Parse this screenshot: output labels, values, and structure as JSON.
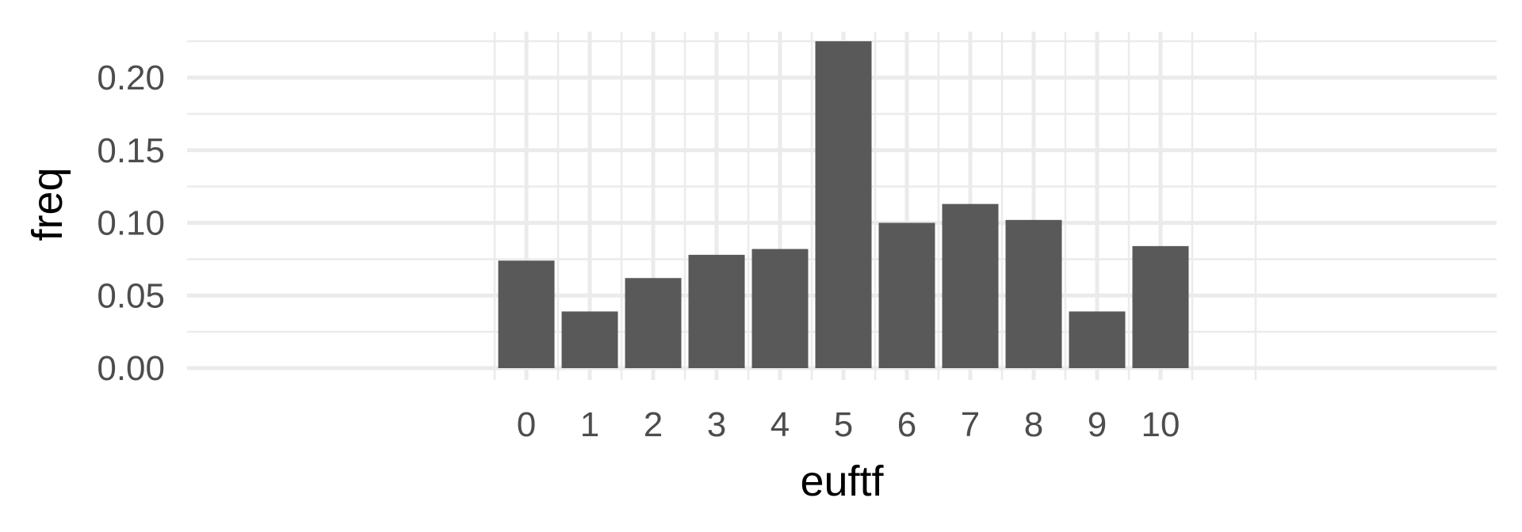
{
  "chart_data": {
    "type": "bar",
    "xlabel": "euftf",
    "ylabel": "freq",
    "categories": [
      "0",
      "1",
      "2",
      "3",
      "4",
      "5",
      "6",
      "7",
      "8",
      "9",
      "10"
    ],
    "values": [
      0.074,
      0.039,
      0.062,
      0.078,
      0.082,
      0.225,
      0.1,
      0.113,
      0.102,
      0.039,
      0.084
    ],
    "ylim": [
      0,
      0.225
    ],
    "yticks": [
      "0.00",
      "0.05",
      "0.10",
      "0.15",
      "0.20"
    ],
    "grid": true,
    "legend": "none",
    "colors": {
      "bar": "#595959",
      "grid": "#ebebeb",
      "background": "#ffffff"
    }
  }
}
